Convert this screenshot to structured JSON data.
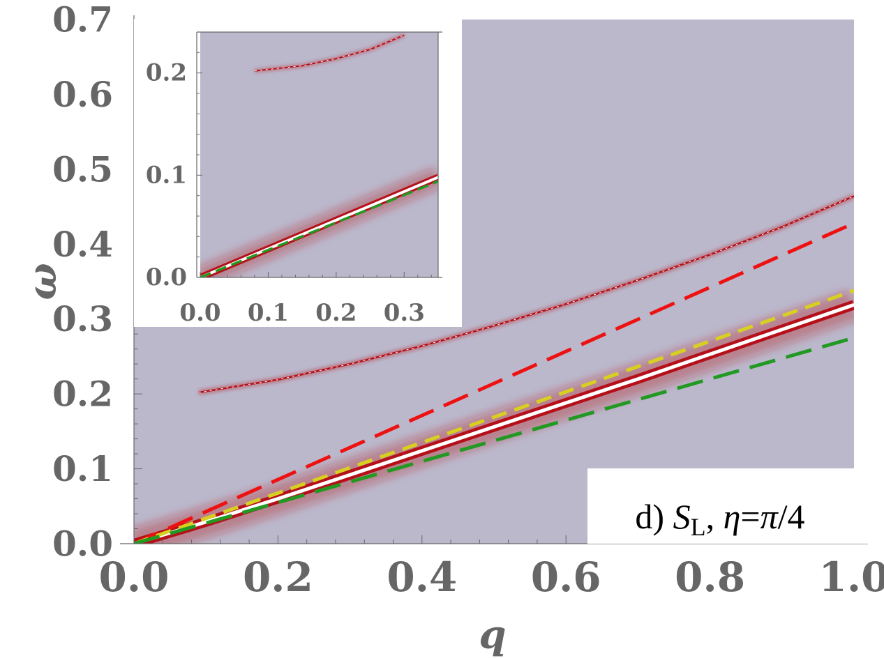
{
  "colors": {
    "background": "#bbb8cc",
    "axis": "#666666",
    "tick_text": "#666666",
    "intensity_low": "#bbb8cc",
    "intensity_mid": "#b5101a",
    "intensity_high": "#ffffff",
    "red_dashed": "#ee1111",
    "yellow_dashed": "#d8d020",
    "green_dashed": "#229922"
  },
  "chart_data": [
    {
      "type": "heatmap",
      "xlabel": "q",
      "ylabel": "ω",
      "xlim": [
        0,
        1.0
      ],
      "ylim": [
        0,
        0.7
      ],
      "x_ticks": [
        "0.0",
        "0.2",
        "0.4",
        "0.6",
        "0.8",
        "1.0"
      ],
      "y_ticks": [
        "0.0",
        "0.1",
        "0.2",
        "0.3",
        "0.4",
        "0.5",
        "0.6",
        "0.7"
      ],
      "legend": {
        "prefix": "d) ",
        "symbol": "S",
        "subscript": "L",
        "sep": ", ",
        "eta": "η",
        "eq": "=",
        "pi": "π",
        "frac": "/4"
      },
      "series": [
        {
          "style": "solid-white-peak",
          "x": [
            0,
            0.1,
            0.2,
            0.3,
            0.4,
            0.5,
            0.6,
            0.7,
            0.8,
            0.9,
            1.0
          ],
          "y": [
            0,
            0.029,
            0.06,
            0.092,
            0.124,
            0.156,
            0.188,
            0.22,
            0.253,
            0.286,
            0.319
          ]
        },
        {
          "style": "thin-red-branch",
          "x": [
            0.09,
            0.2,
            0.3,
            0.4,
            0.5,
            0.6,
            0.7,
            0.8,
            0.9,
            1.0
          ],
          "y": [
            0.202,
            0.219,
            0.24,
            0.264,
            0.291,
            0.32,
            0.352,
            0.386,
            0.423,
            0.464
          ]
        },
        {
          "style": "red-dashed",
          "x": [
            0,
            1.0
          ],
          "y": [
            0,
            0.428
          ]
        },
        {
          "style": "yellow-dashed",
          "x": [
            0,
            1.0
          ],
          "y": [
            0,
            0.338
          ]
        },
        {
          "style": "green-dashed",
          "x": [
            0,
            1.0
          ],
          "y": [
            0,
            0.275
          ]
        }
      ]
    },
    {
      "type": "heatmap",
      "xlim": [
        0,
        0.35
      ],
      "ylim": [
        0,
        0.24
      ],
      "x_ticks": [
        "0.0",
        "0.1",
        "0.2",
        "0.3"
      ],
      "y_ticks": [
        "0.0",
        "0.1",
        "0.2"
      ],
      "series": [
        {
          "style": "solid-white-peak",
          "x": [
            0,
            0.35
          ],
          "y": [
            0,
            0.098
          ]
        },
        {
          "style": "thin-red-branch",
          "x": [
            0.08,
            0.15,
            0.2,
            0.25,
            0.3
          ],
          "y": [
            0.202,
            0.207,
            0.214,
            0.223,
            0.237
          ]
        },
        {
          "style": "green-dashed",
          "x": [
            0,
            0.35
          ],
          "y": [
            0,
            0.094
          ]
        }
      ]
    }
  ]
}
